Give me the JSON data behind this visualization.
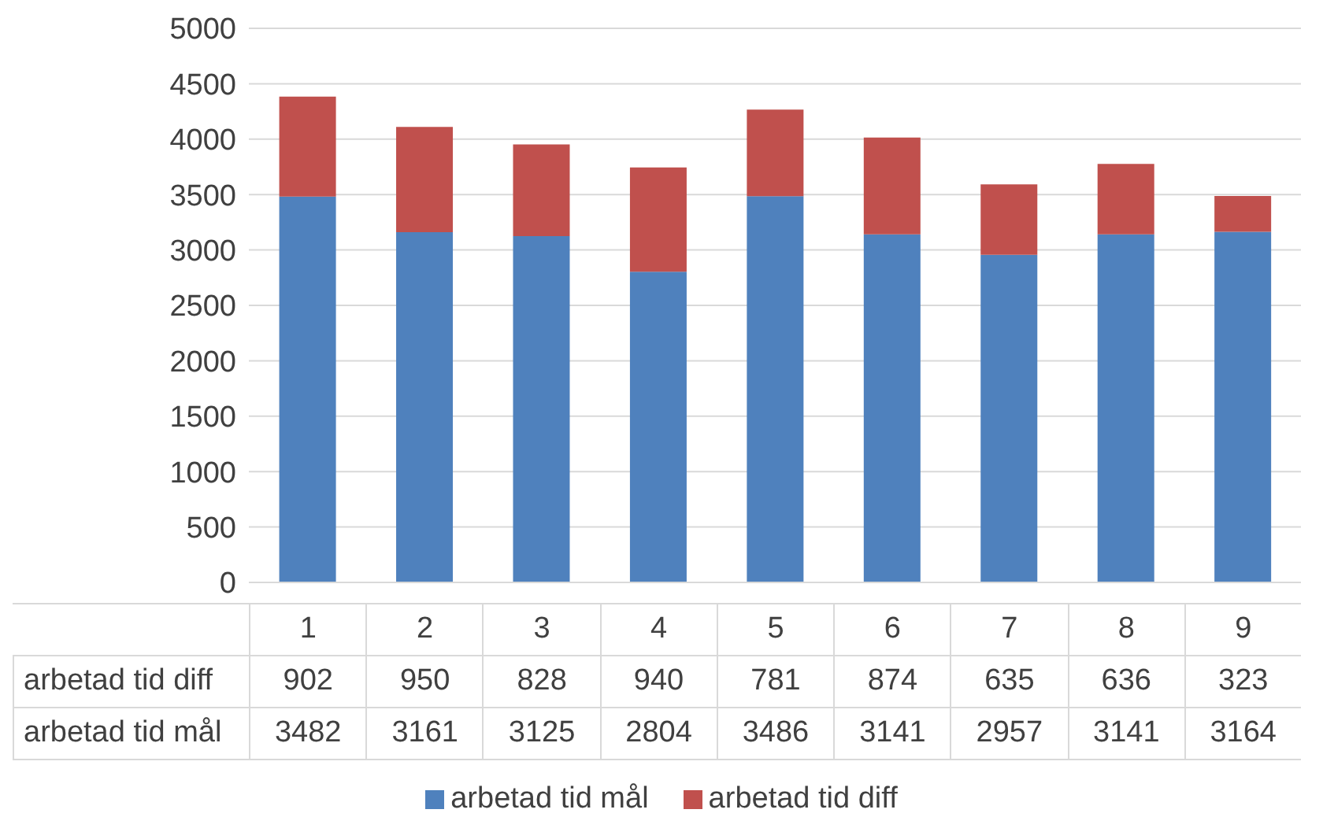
{
  "chart_data": {
    "type": "bar",
    "stacked": true,
    "categories": [
      "1",
      "2",
      "3",
      "4",
      "5",
      "6",
      "7",
      "8",
      "9"
    ],
    "series": [
      {
        "name": "arbetad tid mål",
        "color": "#4f81bd",
        "values": [
          3482,
          3161,
          3125,
          2804,
          3486,
          3141,
          2957,
          3141,
          3164
        ]
      },
      {
        "name": "arbetad tid diff",
        "color": "#c0504d",
        "values": [
          902,
          950,
          828,
          940,
          781,
          874,
          635,
          636,
          323
        ]
      }
    ],
    "ylim": [
      0,
      5000
    ],
    "yticks": [
      0,
      500,
      1000,
      1500,
      2000,
      2500,
      3000,
      3500,
      4000,
      4500,
      5000
    ],
    "grid": "y",
    "legend": "bottom",
    "data_labels": true
  }
}
